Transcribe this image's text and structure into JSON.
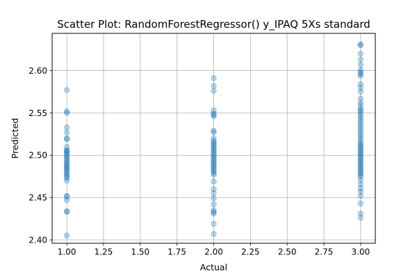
{
  "chart_data": {
    "type": "scatter",
    "title": "Scatter Plot: RandomForestRegressor() y_IPAQ 5Xs standard",
    "xlabel": "Actual",
    "ylabel": "Predicted",
    "xlim": [
      0.9,
      3.1
    ],
    "ylim": [
      2.396,
      2.644
    ],
    "xticks": [
      1.0,
      1.25,
      1.5,
      1.75,
      2.0,
      2.25,
      2.5,
      2.75,
      3.0
    ],
    "xtick_labels": [
      "1.00",
      "1.25",
      "1.50",
      "1.75",
      "2.00",
      "2.25",
      "2.50",
      "2.75",
      "3.00"
    ],
    "yticks": [
      2.4,
      2.45,
      2.5,
      2.55,
      2.6
    ],
    "ytick_labels": [
      "2.40",
      "2.45",
      "2.50",
      "2.55",
      "2.60"
    ],
    "grid": true,
    "marker_color": "#1f77b4",
    "marker_alpha": 0.3,
    "series": [
      {
        "points": [
          [
            1,
            2.405
          ],
          [
            1,
            2.433
          ],
          [
            1,
            2.434
          ],
          [
            1,
            2.447
          ],
          [
            1,
            2.451
          ],
          [
            1,
            2.452
          ],
          [
            1,
            2.47
          ],
          [
            1,
            2.473
          ],
          [
            1,
            2.475
          ],
          [
            1,
            2.477
          ],
          [
            1,
            2.479
          ],
          [
            1,
            2.481
          ],
          [
            1,
            2.483
          ],
          [
            1,
            2.485
          ],
          [
            1,
            2.486
          ],
          [
            1,
            2.488
          ],
          [
            1,
            2.49
          ],
          [
            1,
            2.492
          ],
          [
            1,
            2.494
          ],
          [
            1,
            2.496
          ],
          [
            1,
            2.498
          ],
          [
            1,
            2.5
          ],
          [
            1,
            2.502
          ],
          [
            1,
            2.504
          ],
          [
            1,
            2.505
          ],
          [
            1,
            2.506
          ],
          [
            1,
            2.51
          ],
          [
            1,
            2.519
          ],
          [
            1,
            2.52
          ],
          [
            1,
            2.527
          ],
          [
            1,
            2.533
          ],
          [
            1,
            2.55
          ],
          [
            1,
            2.552
          ],
          [
            1,
            2.577
          ],
          [
            2,
            2.407
          ],
          [
            2,
            2.419
          ],
          [
            2,
            2.431
          ],
          [
            2,
            2.433
          ],
          [
            2,
            2.435
          ],
          [
            2,
            2.442
          ],
          [
            2,
            2.449
          ],
          [
            2,
            2.455
          ],
          [
            2,
            2.46
          ],
          [
            2,
            2.469
          ],
          [
            2,
            2.477
          ],
          [
            2,
            2.479
          ],
          [
            2,
            2.481
          ],
          [
            2,
            2.483
          ],
          [
            2,
            2.485
          ],
          [
            2,
            2.487
          ],
          [
            2,
            2.489
          ],
          [
            2,
            2.491
          ],
          [
            2,
            2.493
          ],
          [
            2,
            2.495
          ],
          [
            2,
            2.497
          ],
          [
            2,
            2.499
          ],
          [
            2,
            2.501
          ],
          [
            2,
            2.503
          ],
          [
            2,
            2.505
          ],
          [
            2,
            2.507
          ],
          [
            2,
            2.509
          ],
          [
            2,
            2.511
          ],
          [
            2,
            2.513
          ],
          [
            2,
            2.515
          ],
          [
            2,
            2.517
          ],
          [
            2,
            2.52
          ],
          [
            2,
            2.527
          ],
          [
            2,
            2.529
          ],
          [
            2,
            2.546
          ],
          [
            2,
            2.548
          ],
          [
            2,
            2.549
          ],
          [
            2,
            2.553
          ],
          [
            2,
            2.576
          ],
          [
            2,
            2.582
          ],
          [
            2,
            2.591
          ],
          [
            3,
            2.426
          ],
          [
            3,
            2.431
          ],
          [
            3,
            2.443
          ],
          [
            3,
            2.452
          ],
          [
            3,
            2.457
          ],
          [
            3,
            2.461
          ],
          [
            3,
            2.466
          ],
          [
            3,
            2.471
          ],
          [
            3,
            2.475
          ],
          [
            3,
            2.477
          ],
          [
            3,
            2.479
          ],
          [
            3,
            2.481
          ],
          [
            3,
            2.483
          ],
          [
            3,
            2.485
          ],
          [
            3,
            2.487
          ],
          [
            3,
            2.489
          ],
          [
            3,
            2.491
          ],
          [
            3,
            2.493
          ],
          [
            3,
            2.495
          ],
          [
            3,
            2.497
          ],
          [
            3,
            2.499
          ],
          [
            3,
            2.501
          ],
          [
            3,
            2.503
          ],
          [
            3,
            2.505
          ],
          [
            3,
            2.507
          ],
          [
            3,
            2.509
          ],
          [
            3,
            2.511
          ],
          [
            3,
            2.513
          ],
          [
            3,
            2.515
          ],
          [
            3,
            2.518
          ],
          [
            3,
            2.521
          ],
          [
            3,
            2.524
          ],
          [
            3,
            2.527
          ],
          [
            3,
            2.53
          ],
          [
            3,
            2.533
          ],
          [
            3,
            2.536
          ],
          [
            3,
            2.539
          ],
          [
            3,
            2.542
          ],
          [
            3,
            2.545
          ],
          [
            3,
            2.548
          ],
          [
            3,
            2.551
          ],
          [
            3,
            2.553
          ],
          [
            3,
            2.555
          ],
          [
            3,
            2.559
          ],
          [
            3,
            2.562
          ],
          [
            3,
            2.567
          ],
          [
            3,
            2.575
          ],
          [
            3,
            2.58
          ],
          [
            3,
            2.584
          ],
          [
            3,
            2.594
          ],
          [
            3,
            2.596
          ],
          [
            3,
            2.598
          ],
          [
            3,
            2.601
          ],
          [
            3,
            2.607
          ],
          [
            3,
            2.613
          ],
          [
            3,
            2.62
          ],
          [
            3,
            2.63
          ],
          [
            3,
            2.631
          ]
        ]
      }
    ]
  }
}
